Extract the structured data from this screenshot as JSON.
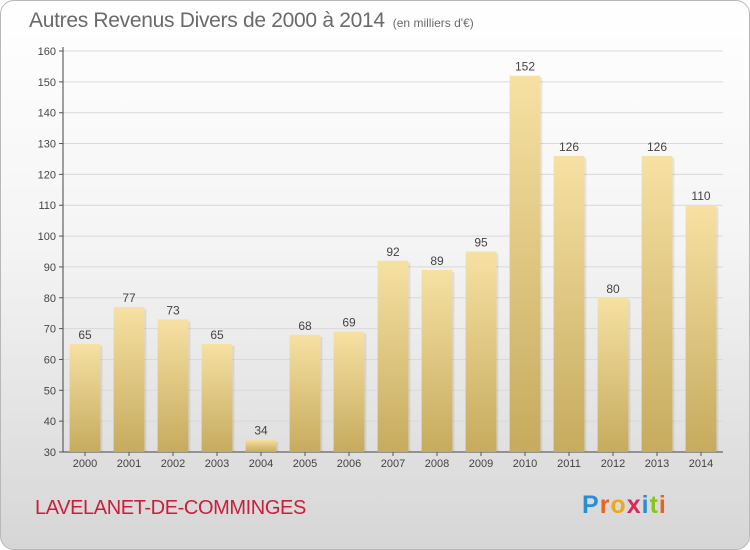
{
  "header": {
    "title": "Autres Revenus Divers de 2000 à 2014",
    "unit_note": "(en milliers d'€)"
  },
  "footer": {
    "commune": "LAVELANET-DE-COMMINGES",
    "logo_letters": [
      "P",
      "r",
      "o",
      "x",
      "i",
      "t",
      "i"
    ],
    "logo_colors": [
      "#2a8fd0",
      "#e8641e",
      "#f0a818",
      "#d82a5a",
      "#2a8fd0",
      "#8ac41e",
      "#e8641e"
    ]
  },
  "colors": {
    "bar_light": "#f6e1a3",
    "bar_dark": "#c6ab5e",
    "grid": "#d9d9d9",
    "text": "#444444",
    "brand_red": "#c8203a"
  },
  "chart_data": {
    "type": "bar",
    "title": "Autres Revenus Divers de 2000 à 2014",
    "subtitle": "(en milliers d'€)",
    "xlabel": "",
    "ylabel": "",
    "categories": [
      "2000",
      "2001",
      "2002",
      "2003",
      "2004",
      "2005",
      "2006",
      "2007",
      "2008",
      "2009",
      "2010",
      "2011",
      "2012",
      "2013",
      "2014"
    ],
    "values": [
      65,
      77,
      73,
      65,
      34,
      68,
      69,
      92,
      89,
      95,
      152,
      126,
      80,
      126,
      110
    ],
    "ylim": [
      30,
      160
    ],
    "yticks": [
      30,
      40,
      50,
      60,
      70,
      80,
      90,
      100,
      110,
      120,
      130,
      140,
      150,
      160
    ],
    "grid": true,
    "data_labels": true
  }
}
